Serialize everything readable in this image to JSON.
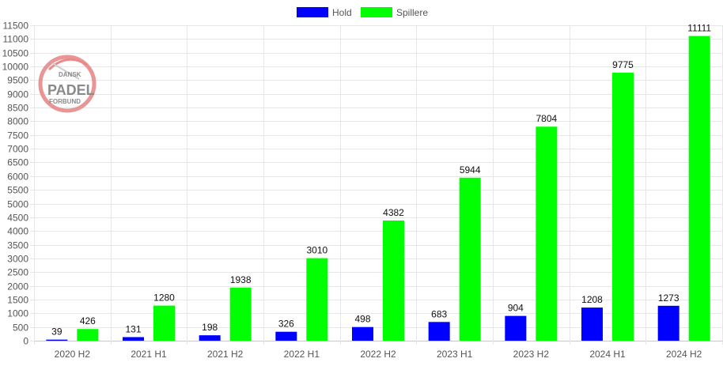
{
  "chart_data": {
    "type": "bar",
    "categories": [
      "2020 H2",
      "2021 H1",
      "2021 H2",
      "2022 H1",
      "2022 H2",
      "2023 H1",
      "2023 H2",
      "2024 H1",
      "2024 H2"
    ],
    "series": [
      {
        "name": "Hold",
        "color": "#0000ff",
        "values": [
          39,
          131,
          198,
          326,
          498,
          683,
          904,
          1208,
          1273
        ]
      },
      {
        "name": "Spillere",
        "color": "#00ff00",
        "values": [
          426,
          1280,
          1938,
          3010,
          4382,
          5944,
          7804,
          9775,
          11111
        ]
      }
    ],
    "yticks": [
      0,
      500,
      1000,
      1500,
      2000,
      2500,
      3000,
      3500,
      4000,
      4500,
      5000,
      5500,
      6000,
      6500,
      7000,
      7500,
      8000,
      8500,
      9000,
      9500,
      10000,
      10500,
      11000,
      11500
    ],
    "ylim": [
      0,
      11500
    ],
    "grid": true,
    "legend_position": "top-center",
    "data_labels": true
  },
  "logo": {
    "line1": "DANSK",
    "line2": "PADEL",
    "line3": "FORBUND",
    "ring_color": "#e88a8a"
  }
}
